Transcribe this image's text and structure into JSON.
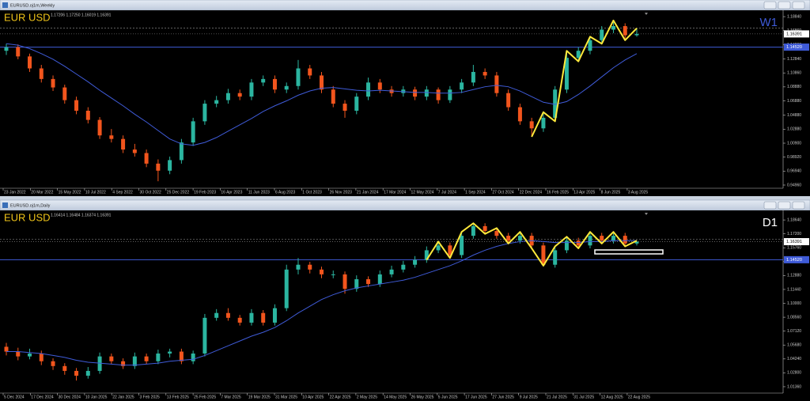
{
  "chart_data": [
    {
      "type": "candlestick",
      "window_title": "EURUSD.oj1m,Weekly",
      "symbol": "EUR USD",
      "timeframe": "W1",
      "timeframe_color": "#3f5bd8",
      "header_values": "1.17206 1.17250 1.16019 1.16391",
      "ylim": [
        0.9451,
        1.1963
      ],
      "yticks": [
        {
          "value": 1.1884,
          "label": "1.18840"
        },
        {
          "value": 1.1686,
          "label": "1.16860"
        },
        {
          "value": 1.1486,
          "label": "1.14860"
        },
        {
          "value": 1.1284,
          "label": "1.12840"
        },
        {
          "value": 1.1086,
          "label": "1.10860"
        },
        {
          "value": 1.0888,
          "label": "1.08880"
        },
        {
          "value": 1.0688,
          "label": "1.06880"
        },
        {
          "value": 1.0488,
          "label": "1.04880"
        },
        {
          "value": 1.0288,
          "label": "1.02880"
        },
        {
          "value": 1.009,
          "label": "1.00900"
        },
        {
          "value": 0.9892,
          "label": "0.98920"
        },
        {
          "value": 0.9694,
          "label": "0.96940"
        },
        {
          "value": 0.9496,
          "label": "0.94960"
        }
      ],
      "x_labels": [
        "23 Jan 2022",
        "20 Mar 2022",
        "15 May 2022",
        "10 Jul 2022",
        "4 Sep 2022",
        "30 Oct 2022",
        "25 Dec 2022",
        "19 Feb 2023",
        "16 Apr 2023",
        "11 Jun 2023",
        "6 Aug 2023",
        "1 Oct 2023",
        "26 Nov 2023",
        "21 Jan 2024",
        "17 Mar 2024",
        "12 May 2024",
        "7 Jul 2024",
        "1 Sep 2024",
        "27 Oct 2024",
        "22 Dec 2024",
        "16 Feb 2025",
        "13 Apr 2025",
        "8 Jun 2025",
        "3 Aug 2025"
      ],
      "up_color": "#2bb5a0",
      "down_color": "#f2551d",
      "ma_color": "#3f5bd8",
      "zigzag_color": "#ffe93b",
      "candles": [
        [
          1.14,
          1.15,
          1.134,
          1.145
        ],
        [
          1.145,
          1.149,
          1.128,
          1.132
        ],
        [
          1.132,
          1.136,
          1.11,
          1.115
        ],
        [
          1.115,
          1.12,
          1.095,
          1.1
        ],
        [
          1.1,
          1.105,
          1.083,
          1.088
        ],
        [
          1.088,
          1.092,
          1.065,
          1.07
        ],
        [
          1.07,
          1.075,
          1.05,
          1.055
        ],
        [
          1.055,
          1.06,
          1.037,
          1.042
        ],
        [
          1.042,
          1.046,
          1.015,
          1.02
        ],
        [
          1.02,
          1.029,
          1.01,
          1.015
        ],
        [
          1.015,
          1.02,
          0.995,
          1.0
        ],
        [
          1.0,
          1.008,
          0.99,
          0.995
        ],
        [
          0.995,
          1.0,
          0.975,
          0.98
        ],
        [
          0.98,
          0.986,
          0.955,
          0.97
        ],
        [
          0.97,
          0.99,
          0.965,
          0.985
        ],
        [
          0.985,
          1.015,
          0.98,
          1.01
        ],
        [
          1.01,
          1.045,
          1.005,
          1.04
        ],
        [
          1.04,
          1.07,
          1.035,
          1.065
        ],
        [
          1.065,
          1.076,
          1.06,
          1.07
        ],
        [
          1.07,
          1.086,
          1.065,
          1.08
        ],
        [
          1.08,
          1.085,
          1.07,
          1.075
        ],
        [
          1.075,
          1.1,
          1.07,
          1.095
        ],
        [
          1.095,
          1.105,
          1.09,
          1.1
        ],
        [
          1.1,
          1.105,
          1.08,
          1.085
        ],
        [
          1.085,
          1.095,
          1.08,
          1.09
        ],
        [
          1.09,
          1.127,
          1.085,
          1.115
        ],
        [
          1.115,
          1.12,
          1.1,
          1.105
        ],
        [
          1.105,
          1.11,
          1.08,
          1.085
        ],
        [
          1.085,
          1.09,
          1.06,
          1.065
        ],
        [
          1.065,
          1.07,
          1.045,
          1.055
        ],
        [
          1.055,
          1.08,
          1.05,
          1.075
        ],
        [
          1.075,
          1.102,
          1.07,
          1.095
        ],
        [
          1.095,
          1.1,
          1.08,
          1.085
        ],
        [
          1.085,
          1.09,
          1.075,
          1.08
        ],
        [
          1.08,
          1.09,
          1.075,
          1.085
        ],
        [
          1.085,
          1.089,
          1.07,
          1.075
        ],
        [
          1.075,
          1.09,
          1.07,
          1.085
        ],
        [
          1.085,
          1.088,
          1.065,
          1.07
        ],
        [
          1.07,
          1.09,
          1.066,
          1.085
        ],
        [
          1.085,
          1.1,
          1.08,
          1.095
        ],
        [
          1.095,
          1.12,
          1.09,
          1.11
        ],
        [
          1.11,
          1.115,
          1.1,
          1.105
        ],
        [
          1.105,
          1.11,
          1.075,
          1.08
        ],
        [
          1.08,
          1.085,
          1.055,
          1.06
        ],
        [
          1.06,
          1.065,
          1.035,
          1.04
        ],
        [
          1.04,
          1.045,
          1.018,
          1.03
        ],
        [
          1.03,
          1.053,
          1.025,
          1.045
        ],
        [
          1.045,
          1.09,
          1.04,
          1.085
        ],
        [
          1.085,
          1.14,
          1.08,
          1.13
        ],
        [
          1.13,
          1.145,
          1.125,
          1.14
        ],
        [
          1.14,
          1.16,
          1.135,
          1.155
        ],
        [
          1.155,
          1.175,
          1.15,
          1.17
        ],
        [
          1.17,
          1.183,
          1.165,
          1.175
        ],
        [
          1.175,
          1.179,
          1.155,
          1.162
        ],
        [
          1.162,
          1.172,
          1.16,
          1.1639
        ]
      ],
      "ma": [
        1.15,
        1.148,
        1.143,
        1.136,
        1.128,
        1.118,
        1.107,
        1.096,
        1.084,
        1.073,
        1.062,
        1.05,
        1.039,
        1.027,
        1.015,
        1.008,
        1.006,
        1.01,
        1.017,
        1.026,
        1.035,
        1.044,
        1.054,
        1.062,
        1.069,
        1.077,
        1.083,
        1.087,
        1.088,
        1.086,
        1.084,
        1.083,
        1.084,
        1.083,
        1.082,
        1.081,
        1.081,
        1.08,
        1.08,
        1.081,
        1.085,
        1.089,
        1.091,
        1.089,
        1.083,
        1.075,
        1.067,
        1.064,
        1.068,
        1.078,
        1.09,
        1.103,
        1.116,
        1.127,
        1.136
      ],
      "zigzag": [
        null,
        null,
        null,
        null,
        null,
        null,
        null,
        null,
        null,
        null,
        null,
        null,
        null,
        null,
        null,
        null,
        null,
        null,
        null,
        null,
        null,
        null,
        null,
        null,
        null,
        null,
        null,
        null,
        null,
        null,
        null,
        null,
        null,
        null,
        null,
        null,
        null,
        null,
        null,
        null,
        null,
        null,
        null,
        null,
        null,
        1.018,
        1.053,
        1.04,
        1.14,
        1.125,
        1.16,
        1.15,
        1.183,
        1.155,
        1.172
      ],
      "price": 1.16391,
      "reference_line": 1.172,
      "level": {
        "value": 1.1452,
        "label": "1.14520"
      }
    },
    {
      "type": "candlestick",
      "window_title": "EURUSD.oj1m,Daily",
      "symbol": "EUR USD",
      "timeframe": "D1",
      "timeframe_color": "#ffffff",
      "header_values": "1.16414 1.16484 1.16374 1.16391",
      "ylim": [
        1.007,
        1.1955
      ],
      "yticks": [
        {
          "value": 1.1864,
          "label": "1.18640"
        },
        {
          "value": 1.172,
          "label": "1.17200"
        },
        {
          "value": 1.1576,
          "label": "1.15760"
        },
        {
          "value": 1.1432,
          "label": "1.14320"
        },
        {
          "value": 1.1288,
          "label": "1.12880"
        },
        {
          "value": 1.1144,
          "label": "1.11440"
        },
        {
          "value": 1.1,
          "label": "1.10000"
        },
        {
          "value": 1.0856,
          "label": "1.08560"
        },
        {
          "value": 1.0712,
          "label": "1.07120"
        },
        {
          "value": 1.0568,
          "label": "1.05680"
        },
        {
          "value": 1.0424,
          "label": "1.04240"
        },
        {
          "value": 1.028,
          "label": "1.02800"
        },
        {
          "value": 1.0136,
          "label": "1.01360"
        }
      ],
      "x_labels": [
        "5 Dec 2024",
        "17 Dec 2024",
        "30 Dec 2024",
        "10 Jan 2025",
        "22 Jan 2025",
        "3 Feb 2025",
        "13 Feb 2025",
        "25 Feb 2025",
        "7 Mar 2025",
        "19 Mar 2025",
        "31 Mar 2025",
        "10 Apr 2025",
        "22 Apr 2025",
        "2 May 2025",
        "14 May 2025",
        "26 May 2025",
        "5 Jun 2025",
        "17 Jun 2025",
        "27 Jun 2025",
        "9 Jul 2025",
        "21 Jul 2025",
        "31 Jul 2025",
        "12 Aug 2025",
        "22 Aug 2025"
      ],
      "up_color": "#2bb5a0",
      "down_color": "#f2551d",
      "ma_color": "#3f5bd8",
      "zigzag_color": "#ffe93b",
      "candles": [
        [
          1.055,
          1.059,
          1.046,
          1.05
        ],
        [
          1.05,
          1.054,
          1.041,
          1.045
        ],
        [
          1.045,
          1.053,
          1.042,
          1.048
        ],
        [
          1.048,
          1.051,
          1.036,
          1.04
        ],
        [
          1.04,
          1.043,
          1.031,
          1.035
        ],
        [
          1.035,
          1.038,
          1.026,
          1.03
        ],
        [
          1.03,
          1.033,
          1.02,
          1.025
        ],
        [
          1.025,
          1.034,
          1.022,
          1.03
        ],
        [
          1.03,
          1.049,
          1.027,
          1.045
        ],
        [
          1.045,
          1.048,
          1.037,
          1.04
        ],
        [
          1.04,
          1.043,
          1.032,
          1.035
        ],
        [
          1.035,
          1.049,
          1.032,
          1.045
        ],
        [
          1.045,
          1.048,
          1.037,
          1.04
        ],
        [
          1.04,
          1.052,
          1.037,
          1.048
        ],
        [
          1.048,
          1.053,
          1.044,
          1.05
        ],
        [
          1.05,
          1.053,
          1.037,
          1.04
        ],
        [
          1.04,
          1.051,
          1.037,
          1.048
        ],
        [
          1.048,
          1.089,
          1.045,
          1.085
        ],
        [
          1.085,
          1.094,
          1.082,
          1.09
        ],
        [
          1.09,
          1.095,
          1.082,
          1.085
        ],
        [
          1.085,
          1.088,
          1.077,
          1.08
        ],
        [
          1.08,
          1.094,
          1.077,
          1.09
        ],
        [
          1.09,
          1.093,
          1.077,
          1.08
        ],
        [
          1.08,
          1.099,
          1.077,
          1.095
        ],
        [
          1.095,
          1.14,
          1.092,
          1.135
        ],
        [
          1.135,
          1.147,
          1.13,
          1.14
        ],
        [
          1.14,
          1.143,
          1.131,
          1.135
        ],
        [
          1.135,
          1.138,
          1.126,
          1.13
        ],
        [
          1.13,
          1.134,
          1.126,
          1.13
        ],
        [
          1.13,
          1.133,
          1.11,
          1.115
        ],
        [
          1.115,
          1.129,
          1.112,
          1.125
        ],
        [
          1.125,
          1.128,
          1.117,
          1.12
        ],
        [
          1.12,
          1.134,
          1.117,
          1.13
        ],
        [
          1.13,
          1.139,
          1.127,
          1.135
        ],
        [
          1.135,
          1.144,
          1.132,
          1.14
        ],
        [
          1.14,
          1.149,
          1.137,
          1.145
        ],
        [
          1.145,
          1.159,
          1.142,
          1.155
        ],
        [
          1.155,
          1.164,
          1.152,
          1.16
        ],
        [
          1.16,
          1.163,
          1.147,
          1.15
        ],
        [
          1.15,
          1.174,
          1.147,
          1.17
        ],
        [
          1.17,
          1.183,
          1.167,
          1.18
        ],
        [
          1.18,
          1.183,
          1.172,
          1.175
        ],
        [
          1.175,
          1.178,
          1.167,
          1.17
        ],
        [
          1.17,
          1.173,
          1.162,
          1.165
        ],
        [
          1.165,
          1.174,
          1.162,
          1.17
        ],
        [
          1.17,
          1.173,
          1.157,
          1.16
        ],
        [
          1.16,
          1.163,
          1.139,
          1.14
        ],
        [
          1.14,
          1.159,
          1.137,
          1.155
        ],
        [
          1.155,
          1.169,
          1.152,
          1.165
        ],
        [
          1.165,
          1.168,
          1.157,
          1.16
        ],
        [
          1.16,
          1.174,
          1.157,
          1.17
        ],
        [
          1.17,
          1.173,
          1.162,
          1.165
        ],
        [
          1.165,
          1.174,
          1.162,
          1.17
        ],
        [
          1.17,
          1.173,
          1.159,
          1.162
        ],
        [
          1.162,
          1.165,
          1.16,
          1.1639
        ]
      ],
      "ma": [
        1.05,
        1.05,
        1.049,
        1.048,
        1.046,
        1.044,
        1.041,
        1.039,
        1.038,
        1.037,
        1.036,
        1.036,
        1.037,
        1.038,
        1.04,
        1.041,
        1.042,
        1.046,
        1.051,
        1.056,
        1.061,
        1.066,
        1.07,
        1.075,
        1.082,
        1.09,
        1.097,
        1.104,
        1.109,
        1.113,
        1.116,
        1.118,
        1.12,
        1.122,
        1.124,
        1.127,
        1.131,
        1.135,
        1.139,
        1.144,
        1.15,
        1.155,
        1.159,
        1.162,
        1.164,
        1.165,
        1.164,
        1.163,
        1.163,
        1.163,
        1.164,
        1.164,
        1.165,
        1.165,
        1.165
      ],
      "zigzag": [
        null,
        null,
        null,
        null,
        null,
        null,
        null,
        null,
        null,
        null,
        null,
        null,
        null,
        null,
        null,
        null,
        null,
        null,
        null,
        null,
        null,
        null,
        null,
        null,
        null,
        null,
        null,
        null,
        null,
        null,
        null,
        null,
        null,
        null,
        null,
        null,
        1.145,
        1.164,
        1.147,
        1.174,
        1.183,
        1.172,
        1.178,
        1.162,
        1.174,
        1.157,
        1.139,
        1.159,
        1.169,
        1.157,
        1.174,
        1.162,
        1.174,
        1.159,
        1.165
      ],
      "price": 1.16391,
      "reference_line": 1.1665,
      "level": {
        "value": 1.1452,
        "label": "1.14520"
      }
    }
  ]
}
